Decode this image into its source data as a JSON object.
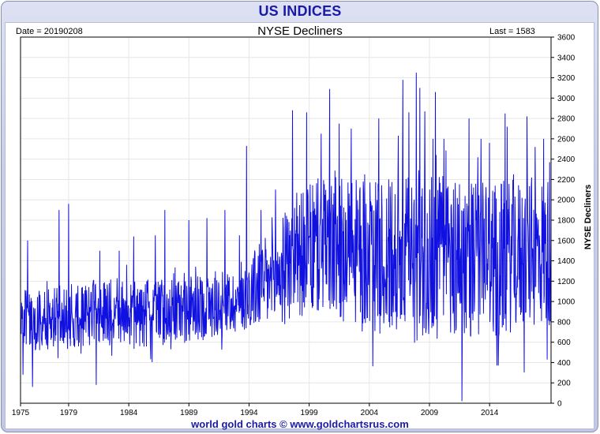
{
  "header": {
    "title": "US INDICES",
    "subtitle": "NYSE Decliners",
    "date_text": "Date = 20190208",
    "last_text": "Last = 1583"
  },
  "footer": {
    "credit": "world gold charts © www.goldchartsrus.com"
  },
  "colors": {
    "line": "#1010e0",
    "title": "#1a1aa8"
  },
  "chart_data": {
    "type": "line",
    "title": "NYSE Decliners",
    "ylabel": "NYSE Decliners",
    "xlabel": "",
    "xlim": [
      1975.0,
      2019.11
    ],
    "ylim": [
      0,
      3600
    ],
    "x_ticks": [
      1975,
      1979,
      1984,
      1989,
      1994,
      1999,
      2004,
      2009,
      2014
    ],
    "y_ticks": [
      0,
      200,
      400,
      600,
      800,
      1000,
      1200,
      1400,
      1600,
      1800,
      2000,
      2200,
      2400,
      2600,
      2800,
      3000,
      3200,
      3400,
      3600
    ],
    "grid": true,
    "y_axis_side": "right",
    "series": [
      {
        "name": "",
        "trend": [
          [
            1975.0,
            800
          ],
          [
            1977.0,
            820
          ],
          [
            1979.0,
            850
          ],
          [
            1981.0,
            880
          ],
          [
            1983.0,
            900
          ],
          [
            1985.0,
            870
          ],
          [
            1987.0,
            900
          ],
          [
            1989.0,
            920
          ],
          [
            1991.0,
            960
          ],
          [
            1993.0,
            1000
          ],
          [
            1994.0,
            1100
          ],
          [
            1996.0,
            1200
          ],
          [
            1998.0,
            1450
          ],
          [
            2000.0,
            1550
          ],
          [
            2002.0,
            1500
          ],
          [
            2004.0,
            1450
          ],
          [
            2006.0,
            1400
          ],
          [
            2008.0,
            1450
          ],
          [
            2010.0,
            1450
          ],
          [
            2012.0,
            1450
          ],
          [
            2014.0,
            1400
          ],
          [
            2016.0,
            1450
          ],
          [
            2019.1,
            1500
          ]
        ],
        "amplitude": [
          [
            1975.0,
            250
          ],
          [
            1980.0,
            260
          ],
          [
            1985.0,
            270
          ],
          [
            1990.0,
            260
          ],
          [
            1993.0,
            250
          ],
          [
            1994.0,
            300
          ],
          [
            1997.0,
            450
          ],
          [
            2000.0,
            550
          ],
          [
            2005.0,
            600
          ],
          [
            2008.0,
            700
          ],
          [
            2012.0,
            650
          ],
          [
            2016.0,
            600
          ],
          [
            2019.1,
            600
          ]
        ],
        "spikes": [
          [
            1975.2,
            280
          ],
          [
            1975.6,
            1600
          ],
          [
            1976.0,
            160
          ],
          [
            1977.2,
            1200
          ],
          [
            1978.2,
            1900
          ],
          [
            1979.0,
            1960
          ],
          [
            1981.3,
            180
          ],
          [
            1981.6,
            1500
          ],
          [
            1983.2,
            1500
          ],
          [
            1984.4,
            1640
          ],
          [
            1986.2,
            1650
          ],
          [
            1987.0,
            1900
          ],
          [
            1989.0,
            1800
          ],
          [
            1990.5,
            1820
          ],
          [
            1992.0,
            1900
          ],
          [
            1993.2,
            1650
          ],
          [
            1993.8,
            2530
          ],
          [
            1995.0,
            1900
          ],
          [
            1996.2,
            2100
          ],
          [
            1997.6,
            2880
          ],
          [
            1998.8,
            2860
          ],
          [
            2000.0,
            2650
          ],
          [
            2000.7,
            3090
          ],
          [
            2001.5,
            2750
          ],
          [
            2002.5,
            2700
          ],
          [
            2003.6,
            2250
          ],
          [
            2004.8,
            2800
          ],
          [
            2005.6,
            2200
          ],
          [
            2006.4,
            2630
          ],
          [
            2006.8,
            3180
          ],
          [
            2007.3,
            2860
          ],
          [
            2007.9,
            3250
          ],
          [
            2008.2,
            3100
          ],
          [
            2008.6,
            2870
          ],
          [
            2009.3,
            2600
          ],
          [
            2009.5,
            3060
          ],
          [
            2010.2,
            2600
          ],
          [
            2011.0,
            2100
          ],
          [
            2011.7,
            20
          ],
          [
            2012.3,
            2800
          ],
          [
            2013.3,
            2600
          ],
          [
            2014.0,
            2560
          ],
          [
            2014.6,
            370
          ],
          [
            2015.3,
            2850
          ],
          [
            2016.0,
            2250
          ],
          [
            2017.1,
            2820
          ],
          [
            2017.8,
            2520
          ],
          [
            2018.5,
            2600
          ],
          [
            2018.8,
            430
          ],
          [
            2019.0,
            2370
          ]
        ],
        "last_value": 1583
      }
    ]
  }
}
